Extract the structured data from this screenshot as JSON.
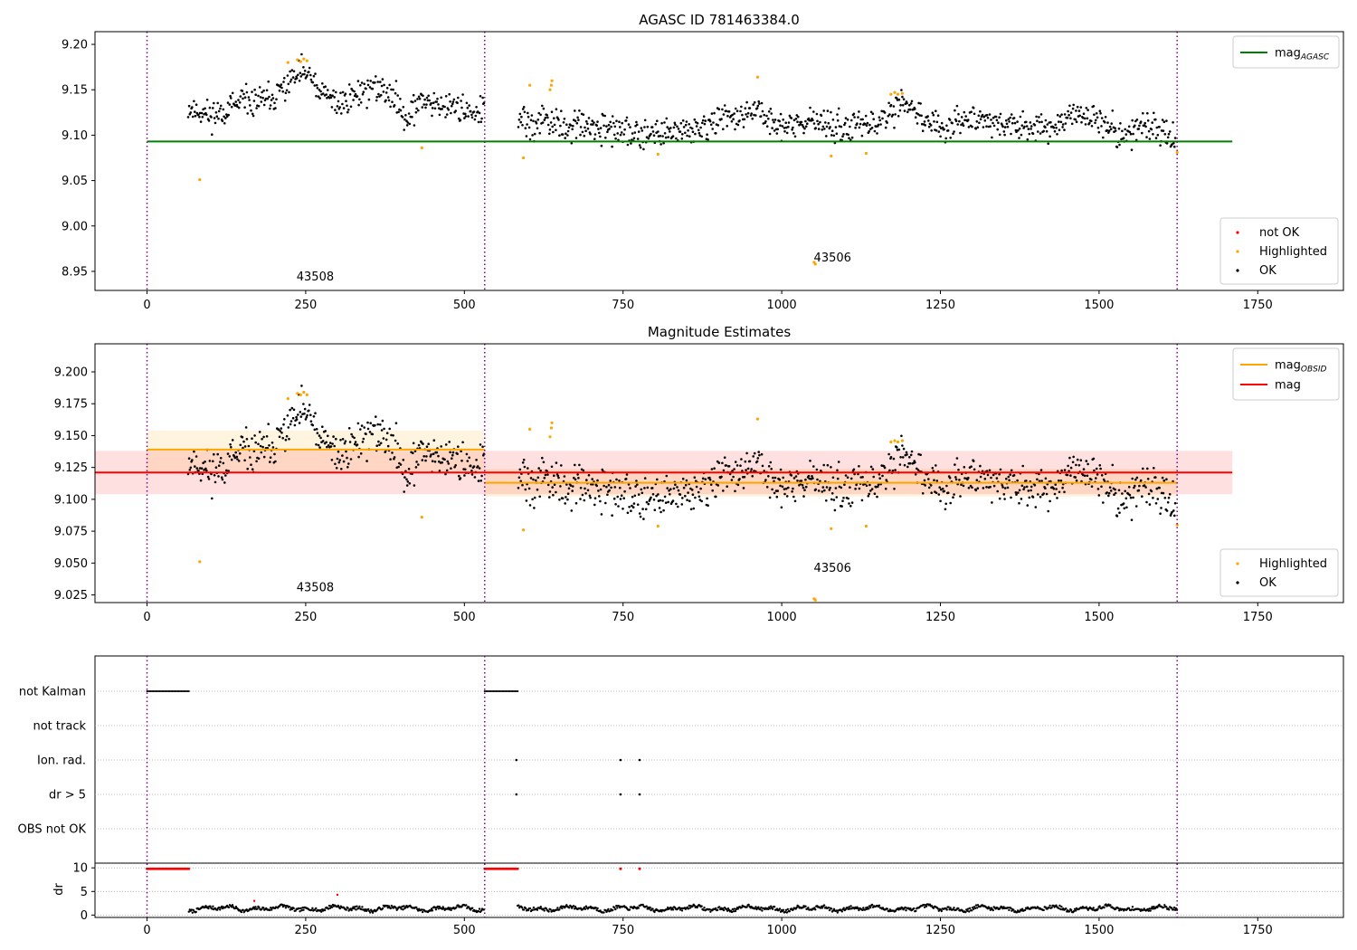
{
  "chart_data": [
    {
      "type": "scatter",
      "title": "AGASC ID 781463384.0",
      "xlabel": "",
      "ylabel": "",
      "xlim": [
        -82,
        1885
      ],
      "ylim": [
        8.929,
        9.214
      ],
      "xticks": [
        "0",
        "250",
        "500",
        "750",
        "1000",
        "1250",
        "1500",
        "1750"
      ],
      "yticks": [
        "8.95",
        "9.00",
        "9.05",
        "9.10",
        "9.15",
        "9.20"
      ],
      "obs_boundaries": [
        0,
        532,
        1623
      ],
      "obs_labels": [
        {
          "text": "43508",
          "x": 265,
          "y": 8.94
        },
        {
          "text": "43506",
          "x": 1080,
          "y": 8.961
        }
      ],
      "horizontal_lines": [
        {
          "name": "mag_AGASC",
          "y": 9.093,
          "x": [
            0,
            1710
          ],
          "color": "#008000"
        }
      ],
      "legend_lines": [
        {
          "label_main": "mag",
          "label_sub": "AGASC",
          "color": "#008000"
        }
      ],
      "legend_points": [
        {
          "label": "not OK",
          "color": "#ff0000"
        },
        {
          "label": "Highlighted",
          "color": "#ffa500"
        },
        {
          "label": "OK",
          "color": "#000000"
        }
      ],
      "legend_positions": {
        "lines": "upper right",
        "points": "lower right"
      },
      "highlighted_points": [
        [
          83,
          9.051
        ],
        [
          222,
          9.18
        ],
        [
          237,
          9.183
        ],
        [
          242,
          9.181
        ],
        [
          247,
          9.184
        ],
        [
          252,
          9.182
        ],
        [
          433,
          9.086
        ],
        [
          593,
          9.075
        ],
        [
          603,
          9.155
        ],
        [
          635,
          9.15
        ],
        [
          637,
          9.155
        ],
        [
          638,
          9.16
        ],
        [
          805,
          9.079
        ],
        [
          962,
          9.164
        ],
        [
          1051,
          8.96
        ],
        [
          1053,
          8.958
        ],
        [
          1078,
          9.077
        ],
        [
          1133,
          9.08
        ],
        [
          1172,
          9.145
        ],
        [
          1178,
          9.147
        ],
        [
          1183,
          9.145
        ],
        [
          1190,
          9.146
        ],
        [
          1623,
          9.081
        ]
      ],
      "ok_trend": [
        {
          "x": [
            65,
            100,
            150,
            200,
            225,
            250,
            270,
            300,
            350,
            380,
            410,
            440,
            470,
            532
          ],
          "y": [
            9.13,
            9.122,
            9.135,
            9.14,
            9.16,
            9.17,
            9.148,
            9.135,
            9.152,
            9.148,
            9.122,
            9.14,
            9.132,
            9.126
          ]
        },
        {
          "x": [
            585,
            650,
            700,
            800,
            900,
            960,
            1000,
            1050,
            1100,
            1150,
            1190,
            1250,
            1300,
            1400,
            1450,
            1500,
            1540,
            1570,
            1620
          ],
          "y": [
            9.115,
            9.112,
            9.108,
            9.102,
            9.115,
            9.125,
            9.11,
            9.115,
            9.108,
            9.112,
            9.135,
            9.108,
            9.12,
            9.105,
            9.12,
            9.118,
            9.094,
            9.115,
            9.1
          ]
        }
      ],
      "ok_spread": 0.008
    },
    {
      "type": "scatter",
      "title": "Magnitude Estimates",
      "xlabel": "",
      "ylabel": "",
      "xlim": [
        -82,
        1885
      ],
      "ylim": [
        9.019,
        9.222
      ],
      "xticks": [
        "0",
        "250",
        "500",
        "750",
        "1000",
        "1250",
        "1500",
        "1750"
      ],
      "yticks": [
        "9.025",
        "9.050",
        "9.075",
        "9.100",
        "9.125",
        "9.150",
        "9.175",
        "9.200"
      ],
      "obs_boundaries": [
        0,
        532,
        1623
      ],
      "obs_labels": [
        {
          "text": "43508",
          "x": 265,
          "y": 9.028
        },
        {
          "text": "43506",
          "x": 1080,
          "y": 9.043
        }
      ],
      "horizontal_lines": [
        {
          "name": "mag_OBSID 43508",
          "y": 9.139,
          "x": [
            0,
            532
          ],
          "color": "#ffa500"
        },
        {
          "name": "mag_OBSID 43506",
          "y": 9.113,
          "x": [
            532,
            1623
          ],
          "color": "#ffa500"
        },
        {
          "name": "mag",
          "y": 9.121,
          "x": [
            -82,
            1710
          ],
          "color": "#ff0000"
        }
      ],
      "bands": [
        {
          "x": [
            0,
            532
          ],
          "y": [
            9.122,
            9.154
          ],
          "color": "#ffa500"
        },
        {
          "x": [
            532,
            1623
          ],
          "y": [
            9.102,
            9.124
          ],
          "color": "#ffa500"
        },
        {
          "x": [
            -82,
            1710
          ],
          "y": [
            9.104,
            9.138
          ],
          "color": "#ff0000"
        }
      ],
      "legend_lines": [
        {
          "label_main": "mag",
          "label_sub": "OBSID",
          "color": "#ffa500"
        },
        {
          "label_main": "mag",
          "label_sub": "",
          "color": "#ff0000"
        }
      ],
      "legend_points": [
        {
          "label": "Highlighted",
          "color": "#ffa500"
        },
        {
          "label": "OK",
          "color": "#000000"
        }
      ],
      "legend_positions": {
        "lines": "upper right",
        "points": "lower right"
      },
      "highlighted_points": [
        [
          83,
          9.051
        ],
        [
          222,
          9.179
        ],
        [
          237,
          9.183
        ],
        [
          242,
          9.182
        ],
        [
          247,
          9.184
        ],
        [
          252,
          9.182
        ],
        [
          433,
          9.086
        ],
        [
          593,
          9.076
        ],
        [
          603,
          9.155
        ],
        [
          635,
          9.149
        ],
        [
          637,
          9.156
        ],
        [
          638,
          9.16
        ],
        [
          805,
          9.079
        ],
        [
          962,
          9.163
        ],
        [
          1051,
          9.022
        ],
        [
          1053,
          9.021
        ],
        [
          1078,
          9.077
        ],
        [
          1133,
          9.079
        ],
        [
          1172,
          9.145
        ],
        [
          1178,
          9.146
        ],
        [
          1183,
          9.145
        ],
        [
          1190,
          9.146
        ],
        [
          1623,
          9.08
        ]
      ],
      "ok_trend": [
        {
          "x": [
            65,
            100,
            150,
            200,
            225,
            250,
            270,
            300,
            350,
            380,
            410,
            440,
            470,
            532
          ],
          "y": [
            9.13,
            9.122,
            9.135,
            9.14,
            9.16,
            9.17,
            9.148,
            9.135,
            9.152,
            9.148,
            9.122,
            9.14,
            9.132,
            9.126
          ]
        },
        {
          "x": [
            585,
            650,
            700,
            800,
            900,
            960,
            1000,
            1050,
            1100,
            1150,
            1190,
            1250,
            1300,
            1400,
            1450,
            1500,
            1540,
            1570,
            1620
          ],
          "y": [
            9.115,
            9.112,
            9.108,
            9.102,
            9.115,
            9.125,
            9.11,
            9.115,
            9.108,
            9.112,
            9.135,
            9.108,
            9.12,
            9.105,
            9.12,
            9.118,
            9.094,
            9.115,
            9.1
          ]
        }
      ],
      "ok_spread": 0.008
    },
    {
      "type": "scatter",
      "title": "",
      "xlabel": "",
      "xlim": [
        -82,
        1885
      ],
      "xticks": [
        "0",
        "250",
        "500",
        "750",
        "1000",
        "1250",
        "1500",
        "1750"
      ],
      "flag_rows": [
        "not Kalman",
        "not track",
        "Ion. rad.",
        "dr > 5",
        "OBS not OK"
      ],
      "flags": {
        "not Kalman": {
          "ranges": [
            [
              0,
              66
            ],
            [
              532,
              584
            ]
          ]
        },
        "not track": {
          "ranges": []
        },
        "Ion. rad.": {
          "points": [
            582,
            746,
            776
          ]
        },
        "dr > 5": {
          "points": [
            582,
            746,
            776
          ]
        },
        "OBS not OK": {
          "points": []
        }
      },
      "obs_boundaries": [
        0,
        532,
        1623
      ],
      "dr_ylabel": "dr",
      "dr_ylim": [
        -0.5,
        11
      ],
      "dr_yticks": [
        "0",
        "5",
        "10"
      ],
      "dr_not_ok": {
        "ranges": [
          [
            0,
            66
          ],
          [
            532,
            584
          ]
        ],
        "points": [
          [
            746,
            9.8
          ],
          [
            776,
            9.8
          ]
        ],
        "value": 9.8
      },
      "dr_extra_red": [
        [
          169,
          3.0
        ],
        [
          300,
          4.3
        ]
      ],
      "dr_ok": {
        "segments": [
          [
            66,
            532
          ],
          [
            584,
            1623
          ]
        ],
        "mean": 1.4,
        "amplitude": 0.6
      }
    }
  ]
}
